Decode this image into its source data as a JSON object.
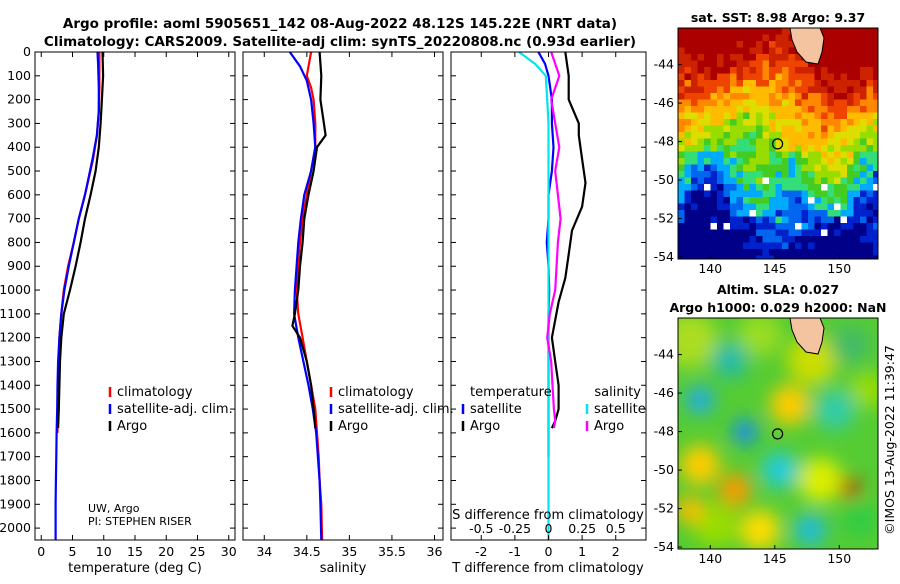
{
  "header": {
    "line1": "Argo profile: aoml 5905651_142 08-Aug-2022 48.12S 145.22E (NRT data)",
    "line2": "Climatology: CARS2009. Satellite-adj clim: synTS_20220808.nc (0.93d earlier)"
  },
  "attribution": "UW, Argo",
  "pi": "PI: STEPHEN RISER",
  "credit": "©IMOS 13-Aug-2022 11:39:47",
  "colors": {
    "climatology": "#ff0000",
    "satellite": "#0000ff",
    "argo": "#000000",
    "sat_salinity": "#00e5ee",
    "argo_salinity": "#ff00ff"
  },
  "chart_data": [
    {
      "type": "line",
      "name": "temperature-profile",
      "xlabel": "temperature (deg C)",
      "xlim": [
        -1,
        31
      ],
      "ylim": [
        2050,
        0
      ],
      "xticks": [
        0,
        5,
        10,
        15,
        20,
        25,
        30
      ],
      "yticks": [
        0,
        100,
        200,
        300,
        400,
        500,
        600,
        700,
        800,
        900,
        1000,
        1100,
        1200,
        1300,
        1400,
        1500,
        1600,
        1700,
        1800,
        1900,
        2000
      ],
      "legend": [
        "climatology",
        "satellite-adj. clim.",
        "Argo"
      ],
      "series": [
        {
          "name": "climatology",
          "color": "#ff0000",
          "x": [
            9.3,
            9.3,
            9.2,
            8.9,
            8.3,
            7.0,
            6.0,
            5.2,
            4.3,
            3.6,
            3.2,
            2.9,
            2.8,
            2.7,
            2.6,
            2.6
          ],
          "y": [
            0,
            150,
            250,
            350,
            450,
            600,
            700,
            800,
            900,
            1000,
            1100,
            1200,
            1300,
            1400,
            1500,
            1600
          ]
        },
        {
          "name": "satellite-adj. clim.",
          "color": "#0000ff",
          "x": [
            9.0,
            9.1,
            9.2,
            9.2,
            8.9,
            8.2,
            7.0,
            6.0,
            5.2,
            4.4,
            3.7,
            3.2,
            2.9,
            2.7,
            2.6,
            2.55,
            2.45,
            2.4,
            2.35,
            2.3,
            2.3,
            2.3
          ],
          "y": [
            0,
            50,
            150,
            250,
            350,
            450,
            600,
            700,
            800,
            900,
            1000,
            1100,
            1200,
            1300,
            1400,
            1500,
            1600,
            1700,
            1800,
            1900,
            2000,
            2050
          ]
        },
        {
          "name": "Argo",
          "color": "#000000",
          "x": [
            9.8,
            9.9,
            9.7,
            9.5,
            9.2,
            8.7,
            7.9,
            7.0,
            6.3,
            5.5,
            4.6,
            3.6,
            3.2,
            3.0,
            2.9,
            2.8,
            2.7
          ],
          "y": [
            0,
            100,
            200,
            300,
            400,
            500,
            600,
            700,
            800,
            900,
            1000,
            1100,
            1200,
            1300,
            1400,
            1500,
            1580
          ]
        }
      ]
    },
    {
      "type": "line",
      "name": "salinity-profile",
      "xlabel": "salinity",
      "xlim": [
        33.75,
        36.1
      ],
      "ylim": [
        2050,
        0
      ],
      "xticks": [
        34,
        34.5,
        35,
        35.5,
        36
      ],
      "legend": [
        "climatology",
        "satellite-adj. clim.",
        "Argo"
      ],
      "series": [
        {
          "name": "climatology",
          "color": "#ff0000",
          "x": [
            34.55,
            34.5,
            34.55,
            34.58,
            34.6,
            34.6,
            34.55,
            34.5,
            34.45,
            34.42,
            34.4,
            34.38,
            34.4,
            34.45,
            34.5,
            34.55,
            34.6,
            34.62,
            34.64,
            34.65,
            34.67,
            34.68
          ],
          "y": [
            0,
            100,
            150,
            200,
            300,
            400,
            500,
            600,
            700,
            800,
            900,
            1000,
            1100,
            1200,
            1300,
            1400,
            1500,
            1600,
            1700,
            1800,
            1900,
            2050
          ]
        },
        {
          "name": "satellite-adj. clim.",
          "color": "#0000ff",
          "x": [
            34.3,
            34.42,
            34.5,
            34.55,
            34.58,
            34.6,
            34.55,
            34.47,
            34.43,
            34.4,
            34.38,
            34.36,
            34.35,
            34.4,
            34.46,
            34.52,
            34.57,
            34.61,
            34.63,
            34.65,
            34.66,
            34.67
          ],
          "y": [
            0,
            60,
            120,
            200,
            300,
            400,
            500,
            600,
            700,
            800,
            900,
            1000,
            1100,
            1200,
            1300,
            1400,
            1500,
            1600,
            1700,
            1800,
            1900,
            2050
          ]
        },
        {
          "name": "Argo",
          "color": "#000000",
          "x": [
            34.65,
            34.67,
            34.66,
            34.7,
            34.72,
            34.62,
            34.58,
            34.52,
            34.47,
            34.45,
            34.42,
            34.4,
            34.36,
            34.33,
            34.42,
            34.5,
            34.55,
            34.58,
            34.6
          ],
          "y": [
            0,
            100,
            200,
            300,
            350,
            400,
            500,
            600,
            700,
            800,
            900,
            1000,
            1100,
            1150,
            1200,
            1300,
            1400,
            1500,
            1580
          ]
        }
      ]
    },
    {
      "type": "line",
      "name": "difference-profile",
      "xlabel": "T difference from climatology",
      "xlabel2": "S difference from climatology",
      "xlim": [
        -2.9,
        2.9
      ],
      "xticks": [
        -2,
        -1,
        0,
        1,
        2
      ],
      "xticklabels": [
        "-2",
        "-1",
        "0",
        "1",
        "2"
      ],
      "sticks": [
        -0.5,
        -0.25,
        0,
        0.25,
        0.5
      ],
      "sticklabels": [
        "-0.5",
        "-0.25",
        "0",
        "0.25",
        "0.5"
      ],
      "sscale": 4,
      "legend_t_title": "temperature",
      "legend_s_title": "salinity",
      "legend_t": [
        "satellite",
        "Argo"
      ],
      "legend_s": [
        "satellite",
        "Argo"
      ],
      "series": [
        {
          "name": "T satellite",
          "color": "#0000ff",
          "x": [
            -0.3,
            -0.1,
            0,
            0.1,
            0.1,
            0.15,
            0.1,
            0,
            0,
            -0.05,
            0,
            0.02,
            0,
            0,
            0,
            0,
            0,
            0,
            0
          ],
          "y": [
            0,
            50,
            100,
            200,
            300,
            400,
            500,
            600,
            700,
            800,
            900,
            1000,
            1100,
            1200,
            1300,
            1400,
            1500,
            1600,
            1700
          ]
        },
        {
          "name": "T Argo",
          "color": "#000000",
          "x": [
            0.5,
            0.6,
            0.6,
            0.9,
            0.9,
            1.0,
            1.1,
            1.0,
            0.7,
            0.6,
            0.5,
            0.3,
            0.1,
            0.2,
            0.3,
            0.3,
            0.2,
            0.1
          ],
          "y": [
            0,
            100,
            200,
            300,
            350,
            450,
            550,
            650,
            750,
            850,
            950,
            1050,
            1200,
            1300,
            1400,
            1500,
            1550,
            1580
          ]
        },
        {
          "name": "S satellite",
          "color": "#00e5ee",
          "x": [
            -0.22,
            -0.1,
            -0.02,
            -0.01,
            0,
            0,
            0,
            0,
            0,
            0,
            0,
            0,
            0,
            0,
            0,
            0,
            0,
            0,
            0,
            0,
            0
          ],
          "y": [
            0,
            50,
            100,
            200,
            300,
            400,
            500,
            600,
            700,
            800,
            900,
            1000,
            1100,
            1200,
            1300,
            1400,
            1500,
            1600,
            1800,
            2000,
            2050
          ]
        },
        {
          "name": "S Argo",
          "color": "#ff00ff",
          "x": [
            0.02,
            0.08,
            0.02,
            0.05,
            0.08,
            0.05,
            0.07,
            0.09,
            0.07,
            0.06,
            0.05,
            0.01,
            -0.01,
            0.02,
            0.03,
            0.04,
            0.05,
            0.04
          ],
          "y": [
            0,
            100,
            200,
            300,
            400,
            500,
            600,
            700,
            800,
            900,
            1000,
            1100,
            1200,
            1300,
            1400,
            1500,
            1550,
            1580
          ]
        }
      ]
    },
    {
      "type": "heatmap",
      "name": "sst-map",
      "title": "sat. SST: 8.98 Argo: 9.37",
      "xticks": [
        140,
        145,
        150
      ],
      "yticks": [
        -44,
        -46,
        -48,
        -50,
        -52,
        -54
      ],
      "xlim": [
        137.5,
        153
      ],
      "ylim": [
        -54.1,
        -42.1
      ],
      "float_lon": 145.22,
      "float_lat": -48.12
    },
    {
      "type": "heatmap",
      "name": "sla-map",
      "title": "Altim. SLA: 0.027",
      "subtitle": "Argo h1000: 0.029 h2000: NaN",
      "xticks": [
        140,
        145,
        150
      ],
      "yticks": [
        -44,
        -46,
        -48,
        -50,
        -52,
        -54
      ],
      "xlim": [
        137.5,
        153
      ],
      "ylim": [
        -54.1,
        -42.1
      ],
      "float_lon": 145.22,
      "float_lat": -48.12
    }
  ]
}
